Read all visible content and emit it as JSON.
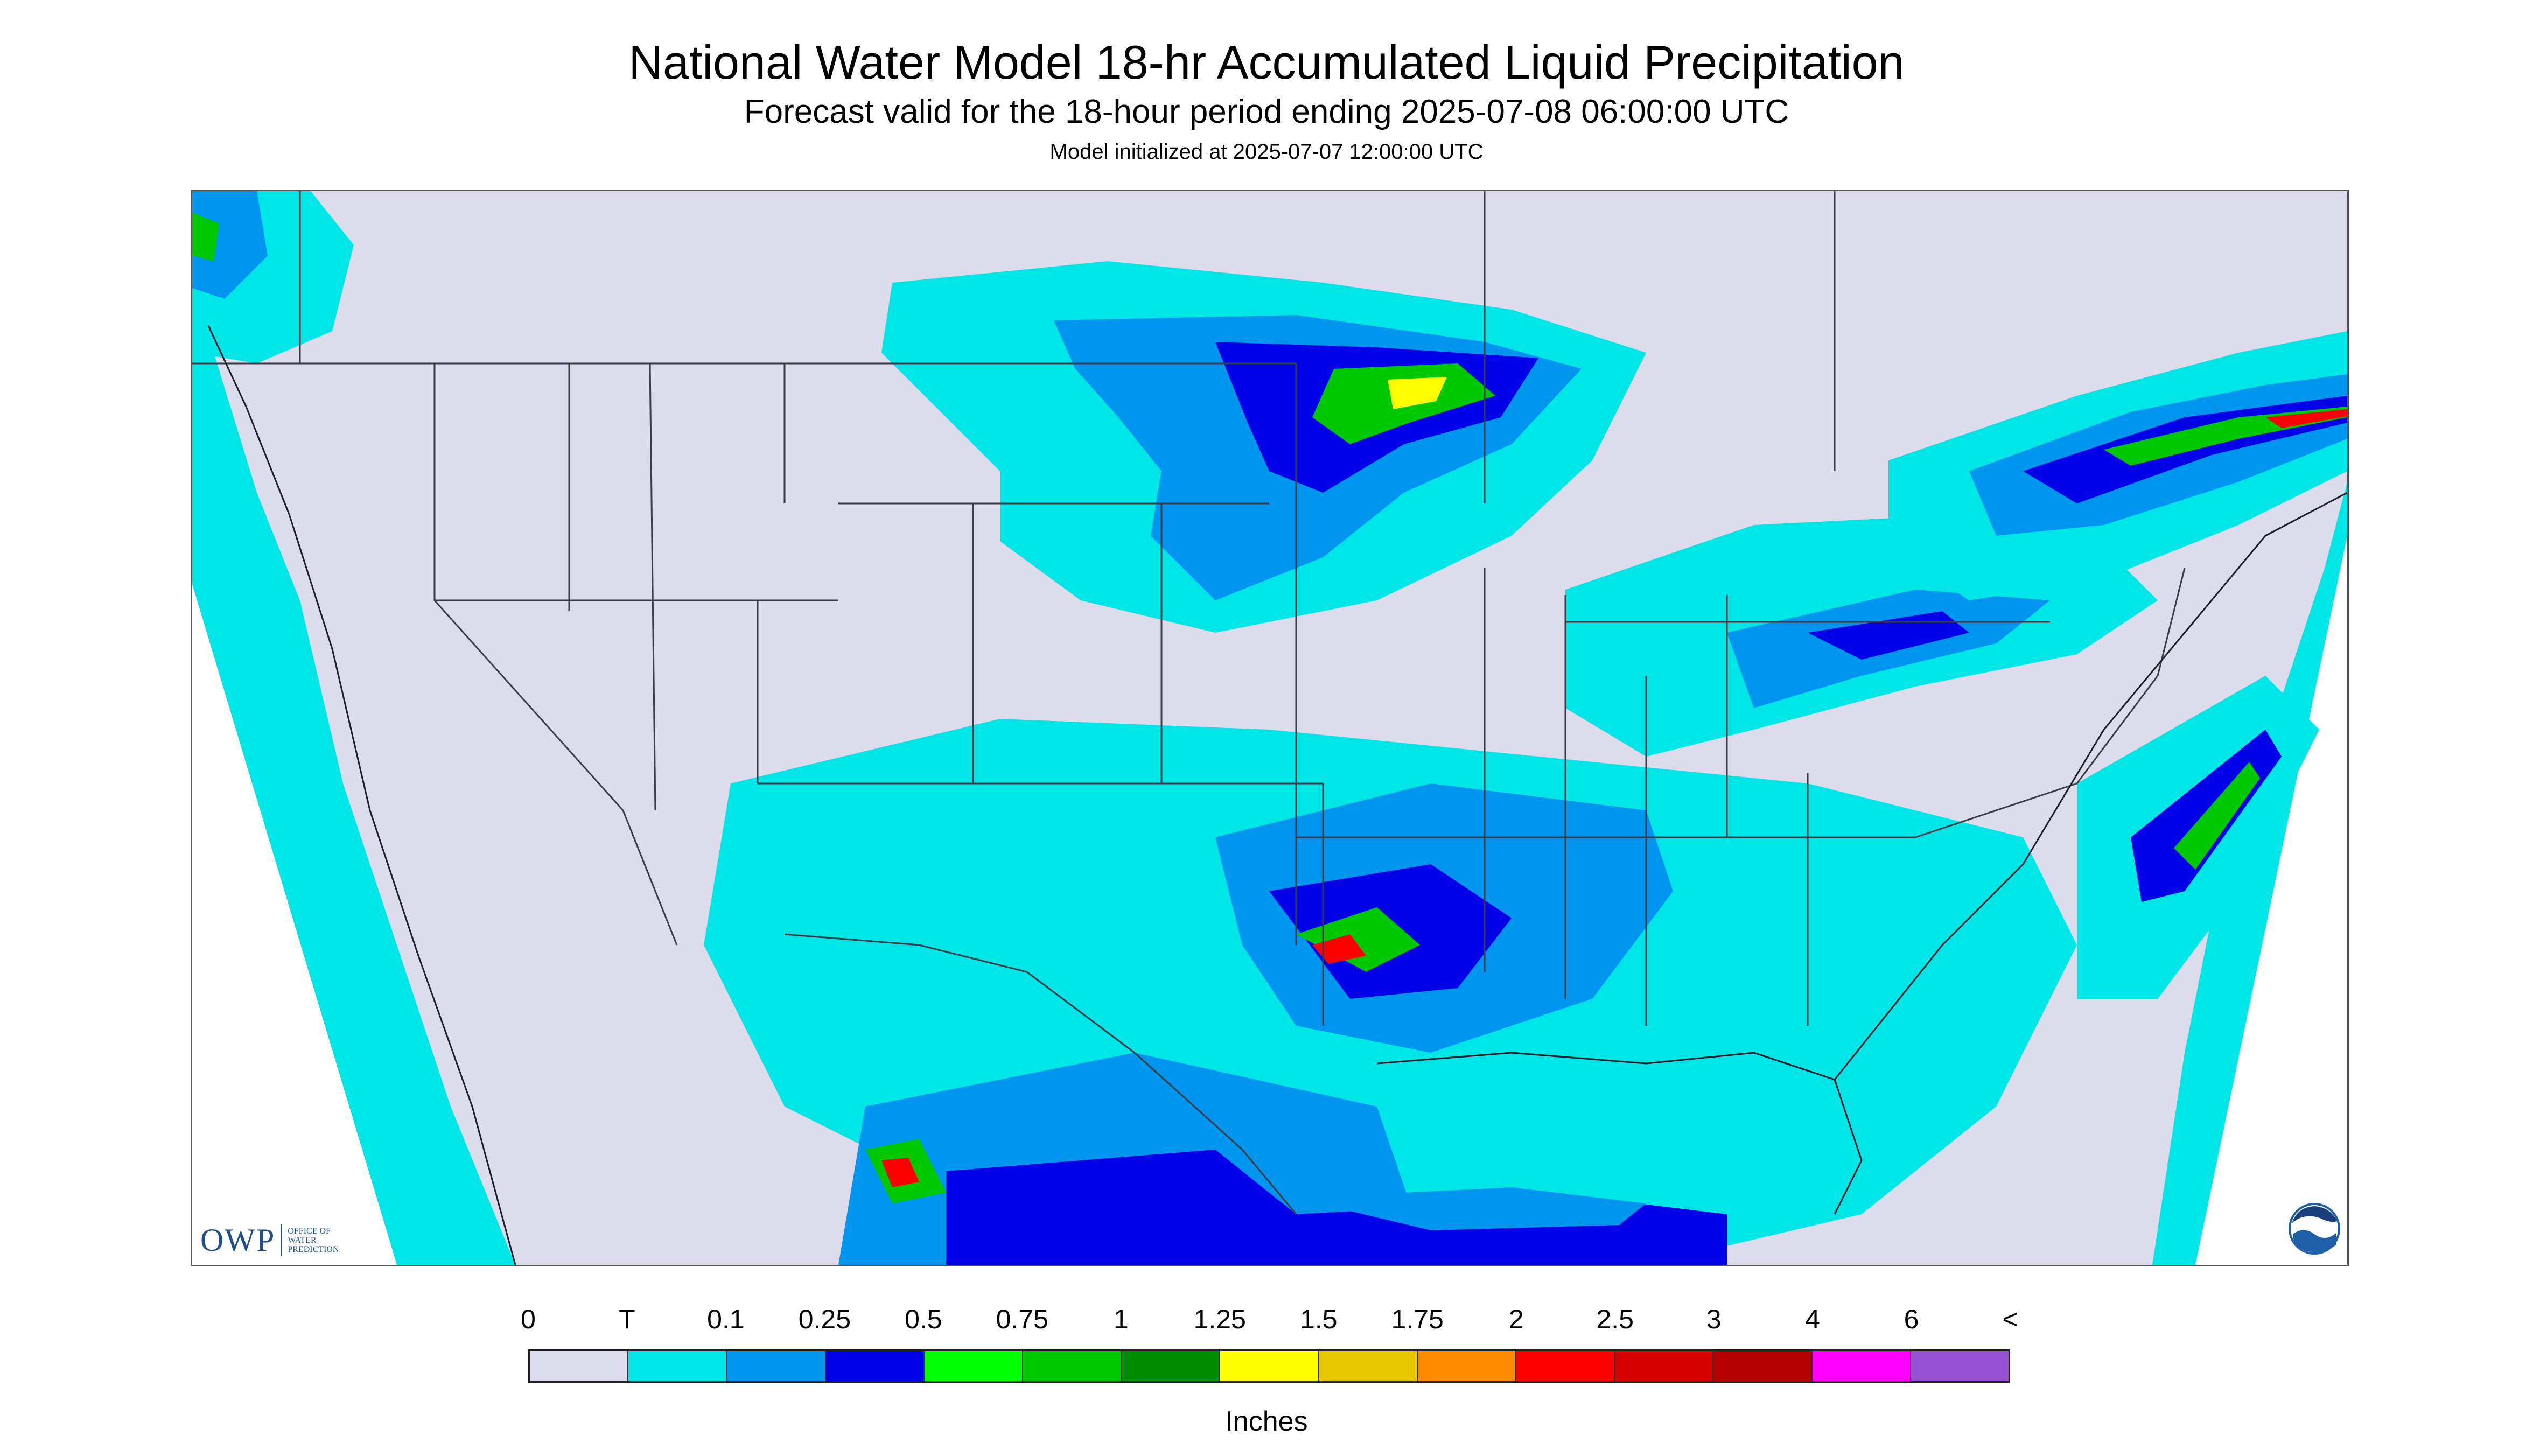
{
  "title": "National Water Model 18-hr Accumulated Liquid Precipitation",
  "subtitle": "Forecast valid for the 18-hour period ending 2025-07-08 06:00:00 UTC",
  "init": "Model initialized at 2025-07-07 12:00:00 UTC",
  "logo": {
    "owp_mark": "OWP",
    "owp_text": [
      "OFFICE OF",
      "WATER",
      "PREDICTION"
    ],
    "noaa_text": "NOAA"
  },
  "legend": {
    "units": "Inches",
    "labels": [
      "0",
      "T",
      "0.1",
      "0.25",
      "0.5",
      "0.75",
      "1",
      "1.25",
      "1.5",
      "1.75",
      "2",
      "2.5",
      "3",
      "4",
      "6",
      "<"
    ],
    "colors": [
      "#dcdcec",
      "#00e6e6",
      "#0096f0",
      "#0000e6",
      "#00ff00",
      "#00c800",
      "#008c00",
      "#ffff00",
      "#e6c800",
      "#ff8c00",
      "#ff0000",
      "#d80000",
      "#b40000",
      "#ff00ff",
      "#9650d2"
    ]
  },
  "colors": {
    "land_no_precip": "#dcdcec",
    "trace": "#00e6e6",
    "light": "#0096f0",
    "moderate": "#0000e6",
    "heavy_green": "#00c800",
    "heavy_red": "#ff0000",
    "boundary": "#3c3c46"
  }
}
